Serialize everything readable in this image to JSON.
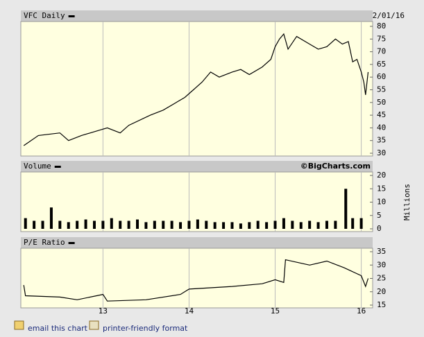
{
  "chart_data": [
    {
      "type": "line",
      "title": "VFC Daily",
      "date": "2/01/16",
      "color": "#000000",
      "x": [
        12.08,
        12.25,
        12.5,
        12.6,
        12.75,
        12.95,
        13.05,
        13.2,
        13.3,
        13.55,
        13.7,
        13.95,
        14.05,
        14.15,
        14.25,
        14.35,
        14.5,
        14.6,
        14.7,
        14.85,
        14.95,
        15.0,
        15.05,
        15.1,
        15.15,
        15.25,
        15.4,
        15.5,
        15.6,
        15.7,
        15.78,
        15.85,
        15.9,
        15.95,
        16.0,
        16.03,
        16.05,
        16.08
      ],
      "values": [
        33,
        37,
        38,
        35,
        37,
        39,
        40,
        38,
        41,
        45,
        47,
        52,
        55,
        58,
        62,
        60,
        62,
        63,
        61,
        64,
        67,
        72,
        75,
        77,
        71,
        76,
        73,
        71,
        72,
        75,
        73,
        74,
        66,
        67,
        62,
        58,
        53,
        62
      ],
      "xlim": [
        12.07,
        16.1
      ],
      "xticks": [
        13,
        14,
        15,
        16
      ],
      "ylim": [
        30,
        80
      ],
      "yticks": [
        30,
        35,
        40,
        45,
        50,
        55,
        60,
        65,
        70,
        75,
        80
      ]
    },
    {
      "type": "bar",
      "title": "Volume",
      "watermark": "©BigCharts.com",
      "ylabel": "Millions",
      "color": "#000000",
      "x": [
        12.1,
        12.2,
        12.3,
        12.4,
        12.5,
        12.6,
        12.7,
        12.8,
        12.9,
        13.0,
        13.1,
        13.2,
        13.3,
        13.4,
        13.5,
        13.6,
        13.7,
        13.8,
        13.9,
        14.0,
        14.1,
        14.2,
        14.3,
        14.4,
        14.5,
        14.6,
        14.7,
        14.8,
        14.9,
        15.0,
        15.1,
        15.2,
        15.3,
        15.4,
        15.5,
        15.6,
        15.7,
        15.82,
        15.9,
        16.0
      ],
      "values": [
        4,
        3,
        3,
        8,
        3,
        2.5,
        3,
        3.5,
        3,
        3,
        4,
        3,
        3,
        3.5,
        2.5,
        3,
        3,
        3,
        2.5,
        3,
        3.5,
        3,
        2.5,
        2.5,
        2.5,
        2,
        2.5,
        3,
        2.5,
        3,
        4,
        3,
        2.5,
        3,
        2.5,
        3,
        3,
        15,
        4,
        4
      ],
      "xlim": [
        12.07,
        16.1
      ],
      "xticks": [
        13,
        14,
        15,
        16
      ],
      "ylim": [
        0,
        20
      ],
      "yticks": [
        0,
        5,
        10,
        15,
        20
      ]
    },
    {
      "type": "line",
      "title": "P/E Ratio",
      "color": "#000000",
      "show_xtick_labels": true,
      "x": [
        12.08,
        12.1,
        12.5,
        12.7,
        13.0,
        13.05,
        13.5,
        13.9,
        14.0,
        14.5,
        14.85,
        15.0,
        15.1,
        15.12,
        15.4,
        15.6,
        15.8,
        16.0,
        16.05,
        16.08
      ],
      "values": [
        22.5,
        18.5,
        18,
        17,
        19,
        16.5,
        17,
        19,
        21,
        22,
        23,
        24.5,
        23.5,
        32,
        30,
        31.5,
        29,
        26,
        22,
        25
      ],
      "xlim": [
        12.07,
        16.1
      ],
      "xticks": [
        13,
        14,
        15,
        16
      ],
      "ylim": [
        15,
        35
      ],
      "yticks": [
        15,
        20,
        25,
        30,
        35
      ]
    }
  ],
  "links": [
    "email this chart",
    "printer-friendly format"
  ]
}
